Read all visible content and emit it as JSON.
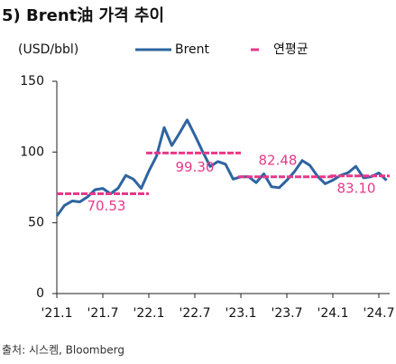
{
  "chart_data": {
    "type": "line",
    "title": "5) Brent油 가격 추이",
    "unit_label": "(USD/bbl)",
    "source": "출처: 시스켐, Bloomberg",
    "categories": [
      "'21.1",
      null,
      null,
      null,
      null,
      null,
      "'21.7",
      null,
      null,
      null,
      null,
      null,
      "'22.1",
      null,
      null,
      null,
      null,
      null,
      "'22.7",
      null,
      null,
      null,
      null,
      null,
      "'23.1",
      null,
      null,
      null,
      null,
      null,
      "'23.7",
      null,
      null,
      null,
      null,
      null,
      "'24.1",
      null,
      null,
      null,
      null,
      null,
      "'24.7",
      null
    ],
    "series": [
      {
        "name": "Brent",
        "color": "#2e64a0",
        "values": [
          54.8,
          62.3,
          65.4,
          64.8,
          68.3,
          73.4,
          74.3,
          70.5,
          74.5,
          83.5,
          80.8,
          74.3,
          86.5,
          97.1,
          117.3,
          104.6,
          113.3,
          122.7,
          111.9,
          100.5,
          89.8,
          93.3,
          91.4,
          80.9,
          82.5,
          82.6,
          78.4,
          84.6,
          75.5,
          74.8,
          80.1,
          86.2,
          94.0,
          90.6,
          82.9,
          77.6,
          80.1,
          83.5,
          85.4,
          89.9,
          81.8,
          82.6,
          85.2,
          80.0
        ]
      }
    ],
    "annual_average": {
      "name": "연평균",
      "color": "#e8388a",
      "values": [
        70.53,
        99.3,
        82.48,
        83.1
      ],
      "value_labels": [
        "70.53",
        "99.30",
        "82.48",
        "83.10"
      ]
    },
    "ylim": [
      0,
      150
    ],
    "yticks": [
      0,
      50,
      100,
      150
    ]
  }
}
